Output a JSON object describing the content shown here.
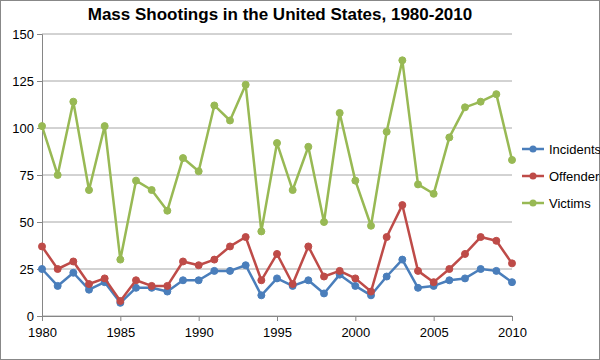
{
  "chart_data": {
    "type": "line",
    "title": "Mass Shootings in the United States, 1980-2010",
    "x": [
      1980,
      1981,
      1982,
      1983,
      1984,
      1985,
      1986,
      1987,
      1988,
      1989,
      1990,
      1991,
      1992,
      1993,
      1994,
      1995,
      1996,
      1997,
      1998,
      1999,
      2000,
      2001,
      2002,
      2003,
      2004,
      2005,
      2006,
      2007,
      2008,
      2009,
      2010
    ],
    "series": [
      {
        "name": "Incidents",
        "color": "#4a7ebb",
        "marker": "circle",
        "values": [
          25,
          16,
          23,
          14,
          18,
          7,
          15,
          15,
          13,
          19,
          19,
          24,
          24,
          27,
          11,
          20,
          16,
          19,
          12,
          22,
          16,
          11,
          21,
          30,
          15,
          16,
          19,
          20,
          25,
          24,
          18
        ]
      },
      {
        "name": "Offenders",
        "color": "#be4b48",
        "marker": "circle",
        "values": [
          37,
          25,
          29,
          17,
          20,
          8,
          19,
          16,
          16,
          29,
          27,
          30,
          37,
          42,
          19,
          33,
          17,
          37,
          21,
          24,
          20,
          13,
          42,
          59,
          24,
          18,
          25,
          33,
          42,
          40,
          28
        ]
      },
      {
        "name": "Victims",
        "color": "#98b954",
        "marker": "circle",
        "values": [
          101,
          75,
          114,
          67,
          101,
          30,
          72,
          67,
          56,
          84,
          77,
          112,
          104,
          123,
          45,
          92,
          67,
          90,
          50,
          108,
          72,
          48,
          98,
          136,
          70,
          65,
          95,
          111,
          114,
          118,
          83
        ]
      }
    ],
    "xlim": [
      1980,
      2010
    ],
    "xticks": [
      1980,
      1985,
      1990,
      1995,
      2000,
      2005,
      2010
    ],
    "ylim": [
      0,
      150
    ],
    "yticks": [
      0,
      25,
      50,
      75,
      100,
      125,
      150
    ],
    "grid": true,
    "legend": "right"
  }
}
